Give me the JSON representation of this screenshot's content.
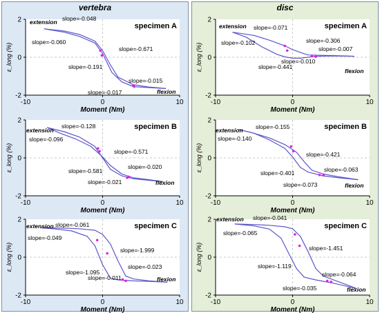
{
  "colors": {
    "left_panel_bg": "#dde8f5",
    "right_panel_bg": "#e4eed8",
    "curve": "#5a55c8",
    "marker": "#e61ce6",
    "zero_line": "#bbbbbb"
  },
  "panels": [
    {
      "title": "vertebra"
    },
    {
      "title": "disc"
    }
  ],
  "chart_data": [
    {
      "type": "line",
      "panel": "vertebra",
      "title": "specimen A",
      "xlabel": "Moment (Nm)",
      "ylabel": "ε_long (%)",
      "xlim": [
        -10,
        10
      ],
      "ylim": [
        -2,
        2
      ],
      "xticks": [
        -10,
        0,
        10
      ],
      "yticks": [
        -2,
        0,
        2
      ],
      "grid": false,
      "labels": {
        "extension": "extension",
        "flexion": "flexion"
      },
      "slopes": [
        "slope=-0.048",
        "slope=-0.060",
        "slope=-0.191",
        "slope=-0.671",
        "slope=-0.015",
        "slope=-0.017"
      ],
      "series": [
        {
          "x": [
            -7.6,
            -5,
            -3,
            -1,
            0,
            1,
            2,
            4,
            6,
            8.2
          ],
          "y": [
            1.5,
            1.38,
            1.2,
            0.85,
            0.35,
            -0.4,
            -1.05,
            -1.45,
            -1.57,
            -1.65
          ]
        },
        {
          "x": [
            8.2,
            6,
            4,
            2.5,
            1.2,
            0,
            -1,
            -3,
            -5,
            -7.6
          ],
          "y": [
            -1.65,
            -1.6,
            -1.55,
            -1.3,
            -0.8,
            0.2,
            0.75,
            1.1,
            1.32,
            1.5
          ]
        }
      ],
      "markers": [
        {
          "x": -0.3,
          "y": 0.35
        },
        {
          "x": -0.1,
          "y": 0.1
        },
        {
          "x": 4.0,
          "y": -1.49
        },
        {
          "x": 4.1,
          "y": -1.55
        }
      ]
    },
    {
      "type": "line",
      "panel": "vertebra",
      "title": "specimen B",
      "xlabel": "Moment (Nm)",
      "ylabel": "ε_long (%)",
      "xlim": [
        -10,
        10
      ],
      "ylim": [
        -2,
        2
      ],
      "xticks": [
        -10,
        0,
        10
      ],
      "yticks": [
        -2,
        0,
        2
      ],
      "grid": false,
      "labels": {
        "extension": "extension",
        "flexion": "flexion"
      },
      "slopes": [
        "slope=-0.128",
        "slope=-0.096",
        "slope=-0.581",
        "slope=-0.571",
        "slope=-0.020",
        "slope=-0.021"
      ],
      "series": [
        {
          "x": [
            -7.2,
            -5,
            -3,
            -1,
            0,
            1,
            2.5,
            4,
            6,
            7.8
          ],
          "y": [
            1.6,
            1.38,
            1.1,
            0.6,
            0.0,
            -0.6,
            -0.95,
            -1.1,
            -1.18,
            -1.25
          ]
        },
        {
          "x": [
            7.8,
            6,
            4,
            2.5,
            1,
            0,
            -1.5,
            -3.5,
            -5.5,
            -7.2
          ],
          "y": [
            -1.25,
            -1.15,
            -1.05,
            -0.85,
            -0.4,
            0.05,
            0.6,
            1.0,
            1.3,
            1.6
          ]
        }
      ],
      "markers": [
        {
          "x": -0.6,
          "y": 0.5
        },
        {
          "x": -0.4,
          "y": 0.35
        },
        {
          "x": 3.2,
          "y": -1.05
        },
        {
          "x": 3.4,
          "y": -1.0
        }
      ]
    },
    {
      "type": "line",
      "panel": "vertebra",
      "title": "specimen C",
      "xlabel": "Moment (Nm)",
      "ylabel": "ε_long (%)",
      "xlim": [
        -10,
        10
      ],
      "ylim": [
        -2,
        2
      ],
      "xticks": [
        -10,
        0,
        10
      ],
      "yticks": [
        -2,
        0,
        2
      ],
      "grid": false,
      "labels": {
        "extension": "extension",
        "flexion": "flexion"
      },
      "slopes": [
        "slope=-0.061",
        "slope=-0.049",
        "slope=-1.095",
        "slope=-1.999",
        "slope=-0.023",
        "slope=-0.011"
      ],
      "series": [
        {
          "x": [
            -8,
            -6,
            -4,
            -2,
            -1,
            0,
            1,
            2,
            4,
            6,
            8.4
          ],
          "y": [
            1.55,
            1.48,
            1.38,
            1.1,
            0.6,
            -0.4,
            -1.1,
            -1.2,
            -1.25,
            -1.28,
            -1.32
          ]
        },
        {
          "x": [
            8.4,
            6,
            4,
            3,
            2,
            1,
            0,
            -1,
            -3,
            -5,
            -8
          ],
          "y": [
            -1.32,
            -1.25,
            -1.15,
            -1.0,
            -0.2,
            0.7,
            1.2,
            1.42,
            1.5,
            1.53,
            1.55
          ]
        }
      ],
      "markers": [
        {
          "x": -0.7,
          "y": 0.9
        },
        {
          "x": 0.6,
          "y": 0.2
        },
        {
          "x": 2.6,
          "y": -1.18
        },
        {
          "x": 3.0,
          "y": -1.25
        }
      ]
    },
    {
      "type": "line",
      "panel": "disc",
      "title": "specimen A",
      "xlabel": "Moment (Nm)",
      "ylabel": "ε_long (%)",
      "xlim": [
        -10,
        10
      ],
      "ylim": [
        -2,
        2
      ],
      "xticks": [
        -10,
        0,
        10
      ],
      "yticks": [
        -2,
        0,
        2
      ],
      "grid": false,
      "labels": {
        "extension": "extension",
        "flexion": "flexion"
      },
      "slopes": [
        "slope=-0.071",
        "slope=-0.102",
        "slope=-0.441",
        "slope=-0.306",
        "slope=-0.007",
        "slope=-0.010"
      ],
      "series": [
        {
          "x": [
            -7.8,
            -6,
            -4,
            -2,
            -1,
            0,
            1,
            3,
            5,
            8
          ],
          "y": [
            1.32,
            1.05,
            0.55,
            0.15,
            0.02,
            -0.05,
            -0.05,
            0.05,
            0.07,
            0.05
          ]
        },
        {
          "x": [
            8,
            6,
            4,
            2,
            1,
            0,
            -1,
            -3,
            -5,
            -7.8
          ],
          "y": [
            0.05,
            0.08,
            0.1,
            0.12,
            0.25,
            0.4,
            0.6,
            0.9,
            1.15,
            1.32
          ]
        }
      ],
      "markers": [
        {
          "x": -1.0,
          "y": 0.6
        },
        {
          "x": -0.7,
          "y": 0.35
        },
        {
          "x": 2.5,
          "y": 0.06
        },
        {
          "x": 3.0,
          "y": 0.03
        }
      ]
    },
    {
      "type": "line",
      "panel": "disc",
      "title": "specimen B",
      "xlabel": "Moment (Nm)",
      "ylabel": "ε_long (%)",
      "xlim": [
        -10,
        10
      ],
      "ylim": [
        -2,
        2
      ],
      "xticks": [
        -10,
        0,
        10
      ],
      "yticks": [
        -2,
        0,
        2
      ],
      "grid": false,
      "labels": {
        "extension": "extension",
        "flexion": "flexion"
      },
      "slopes": [
        "slope=-0.155",
        "slope=-0.140",
        "slope=-0.401",
        "slope=-0.421",
        "slope=-0.063",
        "slope=-0.073"
      ],
      "series": [
        {
          "x": [
            -7,
            -5,
            -3,
            -1,
            0,
            1,
            2,
            4,
            6,
            8.5
          ],
          "y": [
            1.5,
            1.3,
            0.95,
            0.5,
            0.05,
            -0.5,
            -0.75,
            -0.95,
            -1.05,
            -1.15
          ]
        },
        {
          "x": [
            8.5,
            6,
            4,
            2.5,
            1.5,
            0.5,
            -1,
            -3,
            -5,
            -7
          ],
          "y": [
            -1.15,
            -1.0,
            -0.85,
            -0.65,
            -0.2,
            0.3,
            0.7,
            1.05,
            1.3,
            1.5
          ]
        }
      ],
      "markers": [
        {
          "x": -0.2,
          "y": 0.6
        },
        {
          "x": 0.1,
          "y": 0.35
        },
        {
          "x": 3.5,
          "y": -0.9
        },
        {
          "x": 4.0,
          "y": -0.92
        }
      ]
    },
    {
      "type": "line",
      "panel": "disc",
      "title": "specimen C",
      "xlabel": "Moment (Nm)",
      "ylabel": "ε_long (%)",
      "xlim": [
        -10,
        10
      ],
      "ylim": [
        -2,
        2
      ],
      "xticks": [
        -10,
        0,
        10
      ],
      "yticks": [
        -2,
        0,
        2
      ],
      "grid": false,
      "labels": {
        "extension": "extension",
        "flexion": "flexion"
      },
      "slopes": [
        "slope=-0.041",
        "slope=-0.065",
        "slope=-1.119",
        "slope=-1.451",
        "slope=-0.064",
        "slope=-0.035"
      ],
      "series": [
        {
          "x": [
            -7.5,
            -5,
            -3,
            -1.5,
            -0.5,
            0.5,
            1.5,
            3,
            5,
            8.3
          ],
          "y": [
            1.75,
            1.65,
            1.48,
            1.0,
            0.2,
            -0.6,
            -1.05,
            -1.2,
            -1.35,
            -1.65
          ]
        },
        {
          "x": [
            8.3,
            6,
            4,
            3,
            2,
            1,
            0,
            -1,
            -3,
            -5,
            -7.5
          ],
          "y": [
            -1.65,
            -1.3,
            -1.0,
            -0.6,
            0.3,
            1.1,
            1.5,
            1.6,
            1.68,
            1.72,
            1.75
          ]
        }
      ],
      "markers": [
        {
          "x": 0.3,
          "y": 1.2
        },
        {
          "x": 0.9,
          "y": 0.6
        },
        {
          "x": 4.5,
          "y": -1.25
        },
        {
          "x": 5.0,
          "y": -1.3
        }
      ]
    }
  ]
}
